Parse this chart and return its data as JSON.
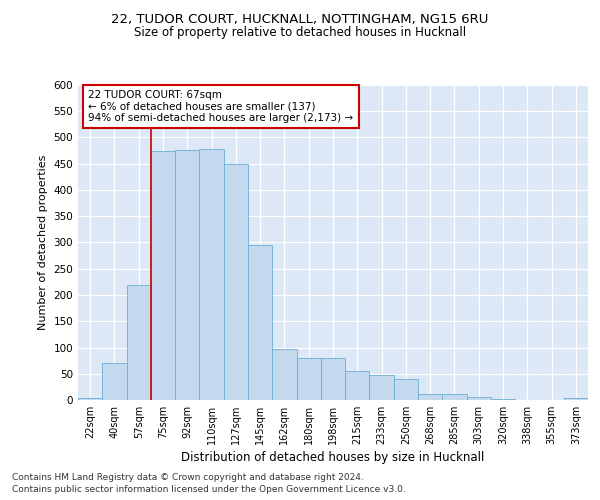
{
  "title1": "22, TUDOR COURT, HUCKNALL, NOTTINGHAM, NG15 6RU",
  "title2": "Size of property relative to detached houses in Hucknall",
  "xlabel": "Distribution of detached houses by size in Hucknall",
  "ylabel": "Number of detached properties",
  "categories": [
    "22sqm",
    "40sqm",
    "57sqm",
    "75sqm",
    "92sqm",
    "110sqm",
    "127sqm",
    "145sqm",
    "162sqm",
    "180sqm",
    "198sqm",
    "215sqm",
    "233sqm",
    "250sqm",
    "268sqm",
    "285sqm",
    "303sqm",
    "320sqm",
    "338sqm",
    "355sqm",
    "373sqm"
  ],
  "values": [
    3,
    70,
    220,
    475,
    476,
    479,
    449,
    295,
    97,
    80,
    80,
    55,
    48,
    40,
    11,
    11,
    5,
    1,
    0,
    0,
    4
  ],
  "bar_color": "#c5d9ee",
  "bar_edge_color": "#6baed6",
  "vline_x_index": 2.5,
  "vline_color": "#cc0000",
  "annotation_line1": "22 TUDOR COURT: 67sqm",
  "annotation_line2": "← 6% of detached houses are smaller (137)",
  "annotation_line3": "94% of semi-detached houses are larger (2,173) →",
  "ylim_min": 0,
  "ylim_max": 600,
  "yticks": [
    0,
    50,
    100,
    150,
    200,
    250,
    300,
    350,
    400,
    450,
    500,
    550,
    600
  ],
  "background_color": "#dce8f5",
  "grid_color": "#ffffff",
  "footer1": "Contains HM Land Registry data © Crown copyright and database right 2024.",
  "footer2": "Contains public sector information licensed under the Open Government Licence v3.0."
}
